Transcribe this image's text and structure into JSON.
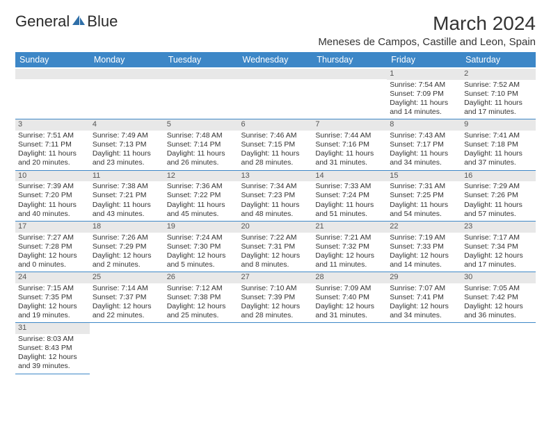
{
  "logo": {
    "part1": "General",
    "part2": "Blue"
  },
  "title": "March 2024",
  "subtitle": "Meneses de Campos, Castille and Leon, Spain",
  "colors": {
    "header_bg": "#3d87c7",
    "header_text": "#ffffff",
    "daynum_bg": "#e8e8e8",
    "cell_border": "#3d87c7",
    "body_text": "#333333"
  },
  "fonts": {
    "title_size_pt": 21,
    "subtitle_size_pt": 11,
    "header_size_pt": 9.5,
    "cell_size_pt": 8,
    "logo_size_pt": 16
  },
  "weekdays": [
    "Sunday",
    "Monday",
    "Tuesday",
    "Wednesday",
    "Thursday",
    "Friday",
    "Saturday"
  ],
  "weeks": [
    [
      null,
      null,
      null,
      null,
      null,
      {
        "n": "1",
        "sr": "7:54 AM",
        "ss": "7:09 PM",
        "dl": "11 hours and 14 minutes."
      },
      {
        "n": "2",
        "sr": "7:52 AM",
        "ss": "7:10 PM",
        "dl": "11 hours and 17 minutes."
      }
    ],
    [
      {
        "n": "3",
        "sr": "7:51 AM",
        "ss": "7:11 PM",
        "dl": "11 hours and 20 minutes."
      },
      {
        "n": "4",
        "sr": "7:49 AM",
        "ss": "7:13 PM",
        "dl": "11 hours and 23 minutes."
      },
      {
        "n": "5",
        "sr": "7:48 AM",
        "ss": "7:14 PM",
        "dl": "11 hours and 26 minutes."
      },
      {
        "n": "6",
        "sr": "7:46 AM",
        "ss": "7:15 PM",
        "dl": "11 hours and 28 minutes."
      },
      {
        "n": "7",
        "sr": "7:44 AM",
        "ss": "7:16 PM",
        "dl": "11 hours and 31 minutes."
      },
      {
        "n": "8",
        "sr": "7:43 AM",
        "ss": "7:17 PM",
        "dl": "11 hours and 34 minutes."
      },
      {
        "n": "9",
        "sr": "7:41 AM",
        "ss": "7:18 PM",
        "dl": "11 hours and 37 minutes."
      }
    ],
    [
      {
        "n": "10",
        "sr": "7:39 AM",
        "ss": "7:20 PM",
        "dl": "11 hours and 40 minutes."
      },
      {
        "n": "11",
        "sr": "7:38 AM",
        "ss": "7:21 PM",
        "dl": "11 hours and 43 minutes."
      },
      {
        "n": "12",
        "sr": "7:36 AM",
        "ss": "7:22 PM",
        "dl": "11 hours and 45 minutes."
      },
      {
        "n": "13",
        "sr": "7:34 AM",
        "ss": "7:23 PM",
        "dl": "11 hours and 48 minutes."
      },
      {
        "n": "14",
        "sr": "7:33 AM",
        "ss": "7:24 PM",
        "dl": "11 hours and 51 minutes."
      },
      {
        "n": "15",
        "sr": "7:31 AM",
        "ss": "7:25 PM",
        "dl": "11 hours and 54 minutes."
      },
      {
        "n": "16",
        "sr": "7:29 AM",
        "ss": "7:26 PM",
        "dl": "11 hours and 57 minutes."
      }
    ],
    [
      {
        "n": "17",
        "sr": "7:27 AM",
        "ss": "7:28 PM",
        "dl": "12 hours and 0 minutes."
      },
      {
        "n": "18",
        "sr": "7:26 AM",
        "ss": "7:29 PM",
        "dl": "12 hours and 2 minutes."
      },
      {
        "n": "19",
        "sr": "7:24 AM",
        "ss": "7:30 PM",
        "dl": "12 hours and 5 minutes."
      },
      {
        "n": "20",
        "sr": "7:22 AM",
        "ss": "7:31 PM",
        "dl": "12 hours and 8 minutes."
      },
      {
        "n": "21",
        "sr": "7:21 AM",
        "ss": "7:32 PM",
        "dl": "12 hours and 11 minutes."
      },
      {
        "n": "22",
        "sr": "7:19 AM",
        "ss": "7:33 PM",
        "dl": "12 hours and 14 minutes."
      },
      {
        "n": "23",
        "sr": "7:17 AM",
        "ss": "7:34 PM",
        "dl": "12 hours and 17 minutes."
      }
    ],
    [
      {
        "n": "24",
        "sr": "7:15 AM",
        "ss": "7:35 PM",
        "dl": "12 hours and 19 minutes."
      },
      {
        "n": "25",
        "sr": "7:14 AM",
        "ss": "7:37 PM",
        "dl": "12 hours and 22 minutes."
      },
      {
        "n": "26",
        "sr": "7:12 AM",
        "ss": "7:38 PM",
        "dl": "12 hours and 25 minutes."
      },
      {
        "n": "27",
        "sr": "7:10 AM",
        "ss": "7:39 PM",
        "dl": "12 hours and 28 minutes."
      },
      {
        "n": "28",
        "sr": "7:09 AM",
        "ss": "7:40 PM",
        "dl": "12 hours and 31 minutes."
      },
      {
        "n": "29",
        "sr": "7:07 AM",
        "ss": "7:41 PM",
        "dl": "12 hours and 34 minutes."
      },
      {
        "n": "30",
        "sr": "7:05 AM",
        "ss": "7:42 PM",
        "dl": "12 hours and 36 minutes."
      }
    ],
    [
      {
        "n": "31",
        "sr": "8:03 AM",
        "ss": "8:43 PM",
        "dl": "12 hours and 39 minutes."
      },
      null,
      null,
      null,
      null,
      null,
      null
    ]
  ],
  "labels": {
    "sunrise": "Sunrise:",
    "sunset": "Sunset:",
    "daylight": "Daylight:"
  }
}
